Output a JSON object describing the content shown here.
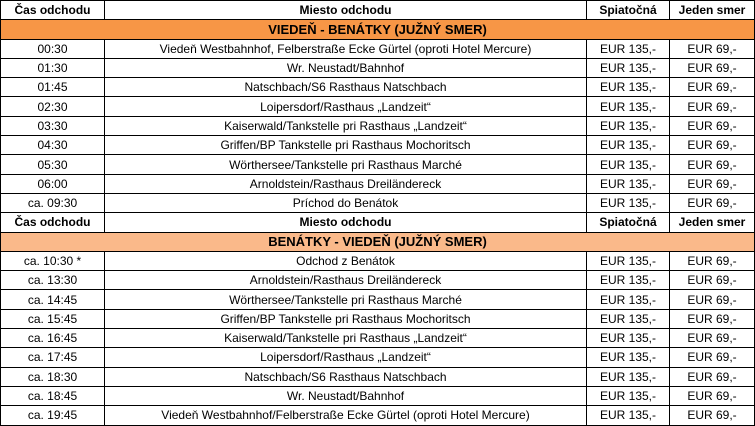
{
  "headers": {
    "time": "Čas odchodu",
    "place": "Miesto odchodu",
    "return": "Spiatočná",
    "oneway": "Jeden smer"
  },
  "colors": {
    "band1": "#f79646",
    "band2": "#fab98a"
  },
  "sections": [
    {
      "title": "VIEDEŇ - BENÁTKY (JUŽNÝ SMER)",
      "rows": [
        [
          "00:30",
          "Viedeň Westbahnhof, Felberstraße Ecke Gürtel (oproti Hotel Mercure)",
          "EUR 135,-",
          "EUR 69,-"
        ],
        [
          "01:30",
          "Wr. Neustadt/Bahnhof",
          "EUR 135,-",
          "EUR 69,-"
        ],
        [
          "01:45",
          "Natschbach/S6 Rasthaus Natschbach",
          "EUR 135,-",
          "EUR 69,-"
        ],
        [
          "02:30",
          "Loipersdorf/Rasthaus „Landzeit“",
          "EUR 135,-",
          "EUR 69,-"
        ],
        [
          "03:30",
          "Kaiserwald/Tankstelle pri Rasthaus „Landzeit“",
          "EUR 135,-",
          "EUR 69,-"
        ],
        [
          "04:30",
          "Griffen/BP Tankstelle pri Rasthaus Mochoritsch",
          "EUR 135,-",
          "EUR 69,-"
        ],
        [
          "05:30",
          "Wörthersee/Tankstelle pri Rasthaus Marché",
          "EUR 135,-",
          "EUR 69,-"
        ],
        [
          "06:00",
          "Arnoldstein/Rasthaus Dreiländereck",
          "EUR 135,-",
          "EUR 69,-"
        ],
        [
          "ca. 09:30",
          "Príchod do Benátok",
          "EUR 135,-",
          "EUR 69,-"
        ]
      ]
    },
    {
      "title": "BENÁTKY - VIEDEŇ (JUŽNÝ SMER)",
      "rows": [
        [
          "ca. 10:30 *",
          "Odchod z Benátok",
          "EUR 135,-",
          "EUR 69,-"
        ],
        [
          "ca. 13:30",
          "Arnoldstein/Rasthaus Dreiländereck",
          "EUR 135,-",
          "EUR 69,-"
        ],
        [
          "ca. 14:45",
          "Wörthersee/Tankstelle pri Rasthaus Marché",
          "EUR 135,-",
          "EUR 69,-"
        ],
        [
          "ca. 15:45",
          "Griffen/BP Tankstelle pri Rasthaus Mochoritsch",
          "EUR 135,-",
          "EUR 69,-"
        ],
        [
          "ca. 16:45",
          "Kaiserwald/Tankstelle pri Rasthaus „Landzeit“",
          "EUR 135,-",
          "EUR 69,-"
        ],
        [
          "ca. 17:45",
          "Loipersdorf/Rasthaus „Landzeit“",
          "EUR 135,-",
          "EUR 69,-"
        ],
        [
          "ca. 18:30",
          "Natschbach/S6 Rasthaus Natschbach",
          "EUR 135,-",
          "EUR 69,-"
        ],
        [
          "ca. 18:45",
          "Wr. Neustadt/Bahnhof",
          "EUR 135,-",
          "EUR 69,-"
        ],
        [
          "ca. 19:45",
          "Viedeň Westbahnhof/Felberstraße Ecke Gürtel (oproti Hotel Mercure)",
          "EUR 135,-",
          "EUR 69,-"
        ]
      ]
    }
  ]
}
